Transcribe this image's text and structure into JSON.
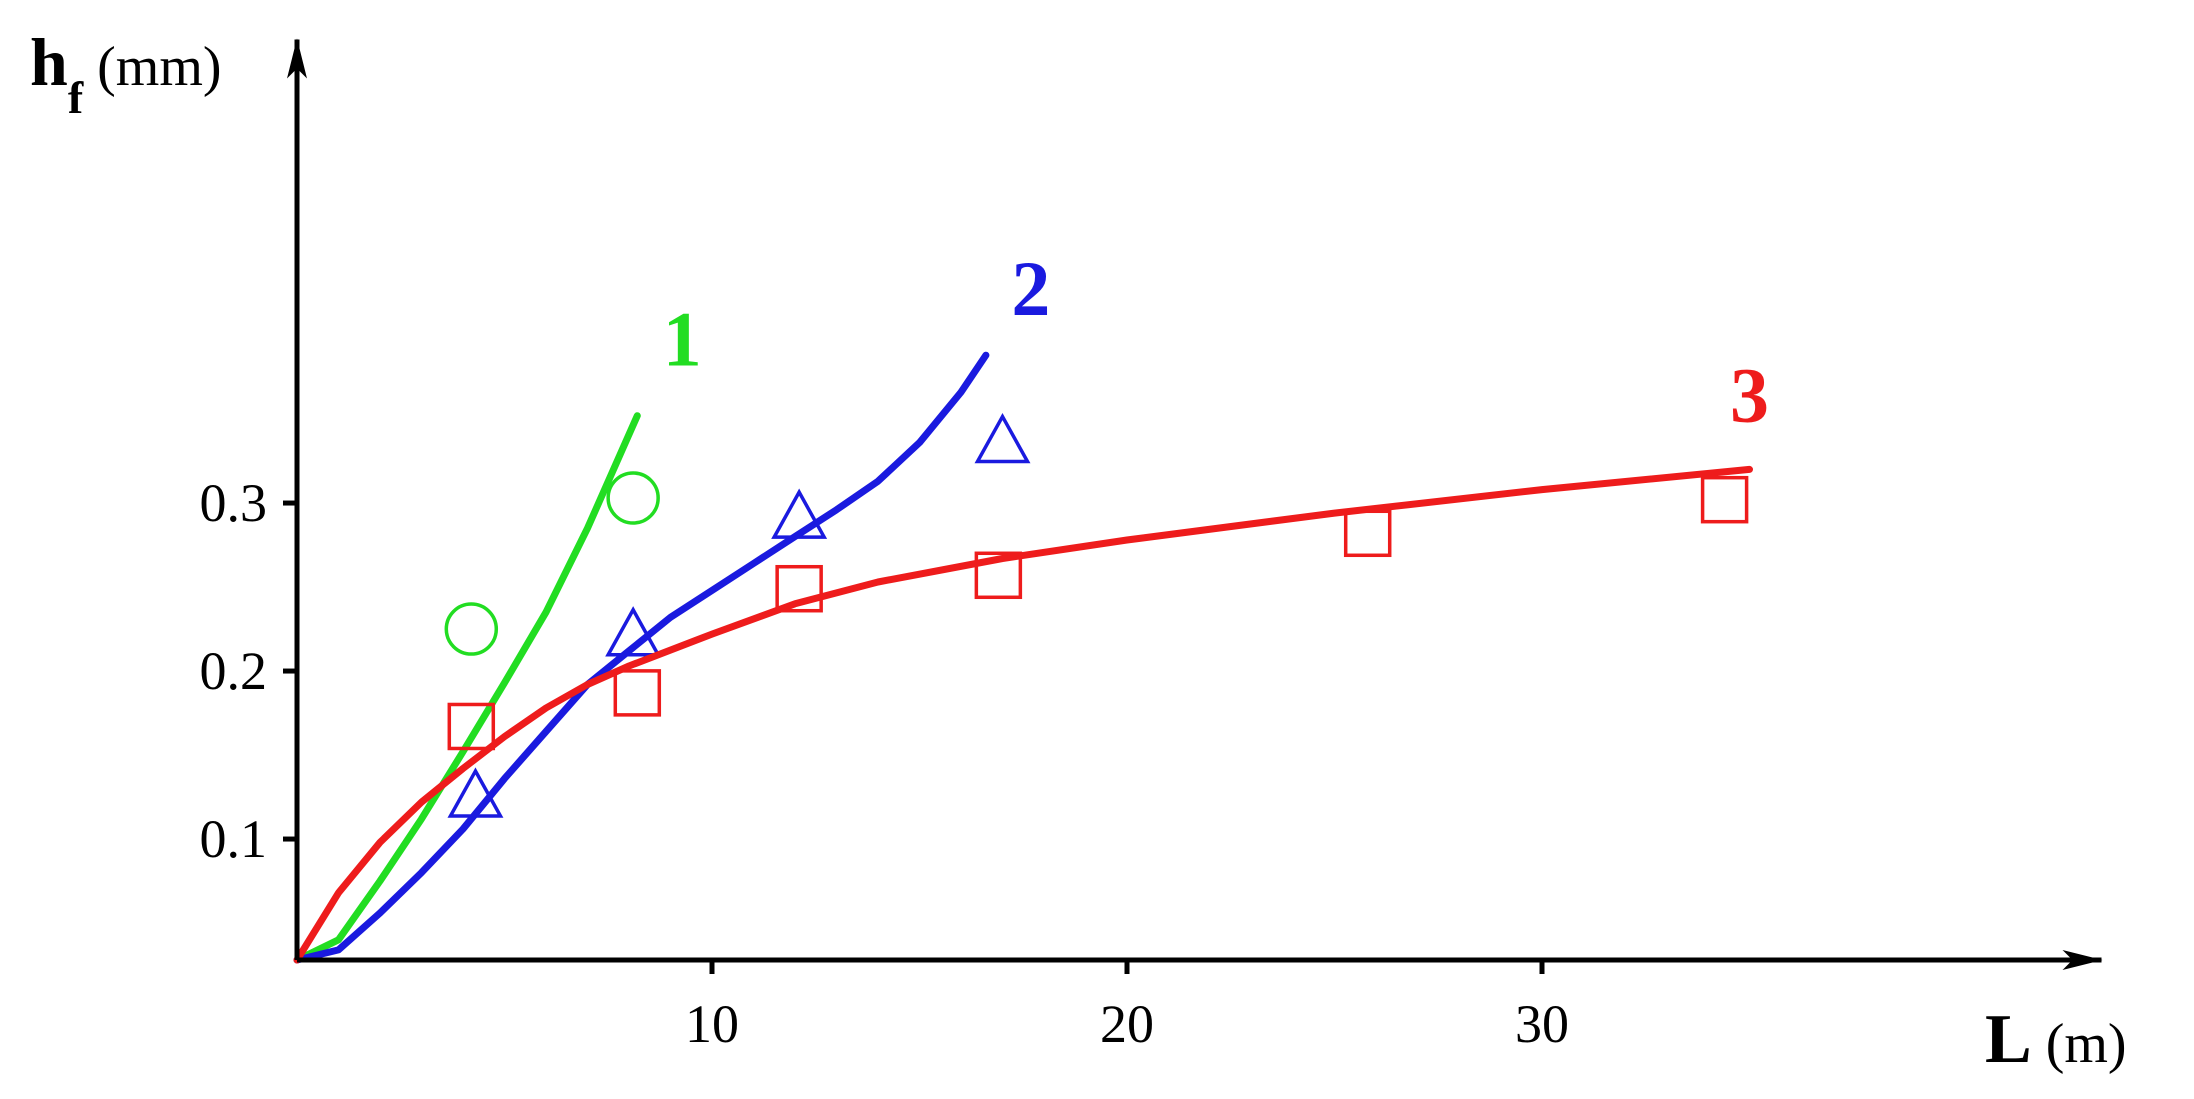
{
  "chart_data": {
    "type": "line",
    "x_axis": {
      "label": "L",
      "unit": "(m)",
      "ticks": [
        10,
        20,
        30
      ],
      "range": [
        0,
        43
      ]
    },
    "y_axis": {
      "label": "h",
      "label_sub": "f",
      "unit": "(mm)",
      "ticks": [
        0.1,
        0.2,
        0.3
      ],
      "tick_labels": [
        "0.1",
        "0.2",
        "0.3"
      ],
      "range": [
        0.03,
        0.57
      ]
    },
    "grid": false,
    "series": [
      {
        "name": "1",
        "color": "#22dd22",
        "marker": "circle",
        "curve": [
          [
            0,
            0.028
          ],
          [
            1,
            0.04
          ],
          [
            2,
            0.075
          ],
          [
            3,
            0.112
          ],
          [
            4,
            0.152
          ],
          [
            5,
            0.193
          ],
          [
            6,
            0.235
          ],
          [
            7,
            0.285
          ],
          [
            8.2,
            0.352
          ]
        ],
        "points": [
          [
            4.2,
            0.225
          ],
          [
            8.1,
            0.303
          ]
        ]
      },
      {
        "name": "2",
        "color": "#1a1adf",
        "marker": "triangle",
        "curve": [
          [
            0,
            0.028
          ],
          [
            1,
            0.034
          ],
          [
            2,
            0.056
          ],
          [
            3,
            0.08
          ],
          [
            4,
            0.106
          ],
          [
            5,
            0.136
          ],
          [
            6,
            0.164
          ],
          [
            7,
            0.192
          ],
          [
            8,
            0.212
          ],
          [
            9,
            0.232
          ],
          [
            10,
            0.248
          ],
          [
            11,
            0.264
          ],
          [
            12,
            0.28
          ],
          [
            13,
            0.296
          ],
          [
            14,
            0.313
          ],
          [
            15,
            0.336
          ],
          [
            16,
            0.366
          ],
          [
            16.6,
            0.388
          ]
        ],
        "points": [
          [
            4.3,
            0.125
          ],
          [
            8.1,
            0.221
          ],
          [
            12.1,
            0.291
          ],
          [
            17,
            0.336
          ]
        ]
      },
      {
        "name": "3",
        "color": "#ee1c1c",
        "marker": "square",
        "curve": [
          [
            0,
            0.028
          ],
          [
            1,
            0.068
          ],
          [
            2,
            0.098
          ],
          [
            3,
            0.122
          ],
          [
            4,
            0.142
          ],
          [
            5,
            0.161
          ],
          [
            6,
            0.178
          ],
          [
            7,
            0.192
          ],
          [
            8,
            0.203
          ],
          [
            10,
            0.222
          ],
          [
            12,
            0.24
          ],
          [
            14,
            0.253
          ],
          [
            17,
            0.267
          ],
          [
            20,
            0.278
          ],
          [
            25,
            0.294
          ],
          [
            30,
            0.308
          ],
          [
            35,
            0.32
          ]
        ],
        "points": [
          [
            4.2,
            0.167
          ],
          [
            8.2,
            0.187
          ],
          [
            12.1,
            0.249
          ],
          [
            16.9,
            0.257
          ],
          [
            25.8,
            0.282
          ],
          [
            34.4,
            0.302
          ]
        ]
      }
    ]
  }
}
